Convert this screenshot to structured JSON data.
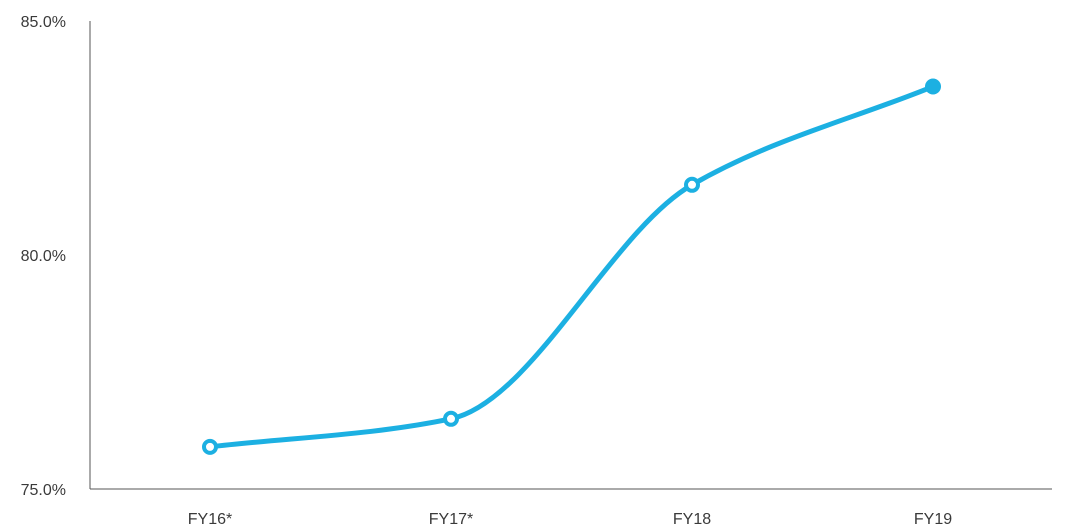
{
  "chart_data": {
    "type": "line",
    "categories": [
      "FY16*",
      "FY17*",
      "FY18",
      "FY19"
    ],
    "series": [
      {
        "values": [
          75.9,
          76.5,
          81.5,
          83.6
        ],
        "color": "#1cb0e2",
        "markers": [
          "hollow",
          "hollow",
          "hollow",
          "filled"
        ]
      }
    ],
    "title": "",
    "xlabel": "",
    "ylabel": "",
    "ylim": [
      75.0,
      85.0
    ],
    "yticks": [
      "75.0%",
      "80.0%",
      "85.0%"
    ],
    "ytick_values": [
      75.0,
      80.0,
      85.0
    ],
    "grid": false,
    "smooth": true
  }
}
